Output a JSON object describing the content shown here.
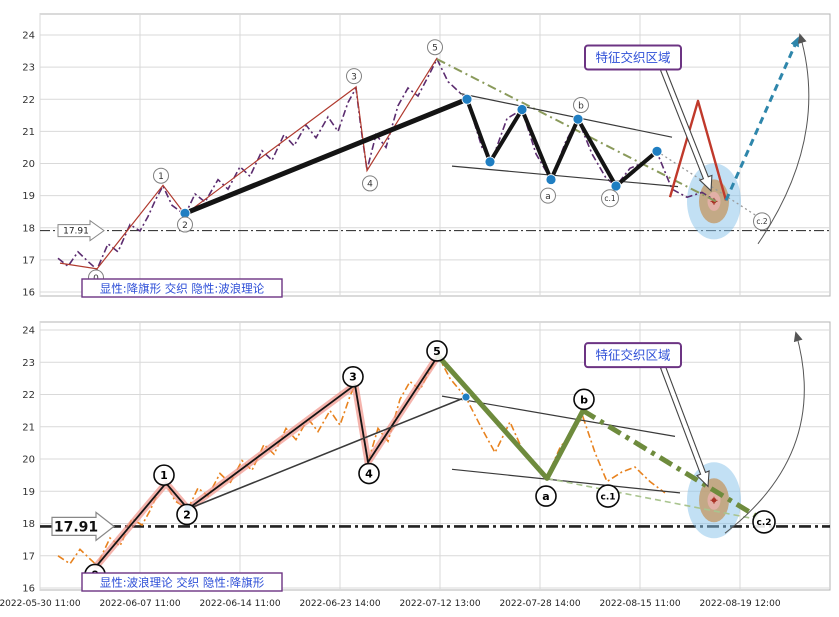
{
  "chart_type": "dual-panel elliott-wave / flag pattern analysis",
  "x_axis": {
    "tick_labels": [
      "2022-05-30 11:00",
      "2022-06-07 11:00",
      "2022-06-14 11:00",
      "2022-06-23 14:00",
      "2022-07-12 13:00",
      "2022-07-28 14:00",
      "2022-08-15 11:00",
      "2022-08-19 12:00"
    ]
  },
  "colors": {
    "price_top": "#5B2C6F",
    "price_bottom": "#E8821E",
    "pivot_thin_red": "#B03A2E",
    "structure_black": "#141414",
    "channel_black": "#3a3a3a",
    "olive": "#8A9A5B",
    "salmon": "#F1948A",
    "green": "#6E8B3D",
    "green_light": "#A9C48E",
    "spike_red": "#C0392B",
    "forecast_teal": "#2E86AB",
    "marker_blue": "#1F7EC2",
    "gray_dotted": "#9a9a9a",
    "bullseye_outer": "#85C1E9",
    "bullseye_mid": "#C39B6A",
    "bullseye_inner": "#E6B0AA",
    "bullseye_dot": "#A93226",
    "box_border_purple": "#6C3483",
    "box_text_blue": "#2E4FD7",
    "grid": "#d9d9d9"
  },
  "chart_data": [
    {
      "name": "top",
      "type": "line",
      "ylim": [
        16,
        24.6
      ],
      "yticks": [
        16,
        17,
        18,
        19,
        20,
        21,
        22,
        23,
        24
      ],
      "hline": {
        "value": 17.91,
        "label": "17.91",
        "weight": "thin"
      },
      "caption": "显性:降旗形 交织 隐性:波浪理论",
      "region_box": {
        "text": "特征交织区域",
        "x": 5.93,
        "v": 23.3,
        "arrow_to": [
          6.71,
          19.15
        ]
      },
      "bullseye": {
        "x": 6.74,
        "v": 18.82
      },
      "curve_arrow": {
        "from": [
          7.18,
          17.5
        ],
        "ctrl": [
          7.9,
          20.8
        ],
        "to": [
          7.6,
          24.0
        ]
      },
      "label_style": "light",
      "labels": [
        {
          "t": "0",
          "x": 0.56,
          "v": 16.45
        },
        {
          "t": "1",
          "x": 1.21,
          "v": 19.62
        },
        {
          "t": "2",
          "x": 1.45,
          "v": 18.1
        },
        {
          "t": "3",
          "x": 3.14,
          "v": 22.72
        },
        {
          "t": "4",
          "x": 3.3,
          "v": 19.38
        },
        {
          "t": "5",
          "x": 3.95,
          "v": 23.62
        },
        {
          "t": "a",
          "x": 5.08,
          "v": 19.0
        },
        {
          "t": "b",
          "x": 5.41,
          "v": 21.82
        },
        {
          "t": "c.1",
          "x": 5.7,
          "v": 18.92
        },
        {
          "t": "c.2",
          "x": 7.22,
          "v": 18.2
        }
      ],
      "markers": {
        "r": 5,
        "points": [
          [
            1.45,
            18.45
          ],
          [
            4.27,
            22.0
          ],
          [
            4.5,
            20.05
          ],
          [
            4.82,
            21.68
          ],
          [
            5.11,
            19.5
          ],
          [
            5.38,
            21.38
          ],
          [
            5.76,
            19.3
          ],
          [
            6.17,
            20.38
          ]
        ]
      },
      "series": [
        {
          "name": "price-purple",
          "style": "price-top",
          "points": [
            [
              0.18,
              17.05
            ],
            [
              0.28,
              16.8
            ],
            [
              0.38,
              17.25
            ],
            [
              0.48,
              16.95
            ],
            [
              0.57,
              16.7
            ],
            [
              0.68,
              17.5
            ],
            [
              0.78,
              17.25
            ],
            [
              0.9,
              18.1
            ],
            [
              1.0,
              17.9
            ],
            [
              1.08,
              18.35
            ],
            [
              1.16,
              18.9
            ],
            [
              1.23,
              19.3
            ],
            [
              1.32,
              18.7
            ],
            [
              1.45,
              18.4
            ],
            [
              1.55,
              19.05
            ],
            [
              1.65,
              18.8
            ],
            [
              1.78,
              19.5
            ],
            [
              1.88,
              19.2
            ],
            [
              2.0,
              19.9
            ],
            [
              2.1,
              19.6
            ],
            [
              2.22,
              20.4
            ],
            [
              2.32,
              20.1
            ],
            [
              2.44,
              20.9
            ],
            [
              2.54,
              20.55
            ],
            [
              2.66,
              21.2
            ],
            [
              2.76,
              20.8
            ],
            [
              2.88,
              21.45
            ],
            [
              2.98,
              21.0
            ],
            [
              3.08,
              21.9
            ],
            [
              3.16,
              22.35
            ],
            [
              3.21,
              21.1
            ],
            [
              3.27,
              19.8
            ],
            [
              3.36,
              20.9
            ],
            [
              3.46,
              20.5
            ],
            [
              3.58,
              21.8
            ],
            [
              3.68,
              22.35
            ],
            [
              3.78,
              22.1
            ],
            [
              3.88,
              22.7
            ],
            [
              3.97,
              23.25
            ],
            [
              4.08,
              22.55
            ],
            [
              4.27,
              22.0
            ],
            [
              4.42,
              20.5
            ],
            [
              4.52,
              20.1
            ],
            [
              4.67,
              21.4
            ],
            [
              4.82,
              21.68
            ],
            [
              4.96,
              20.3
            ],
            [
              5.11,
              19.5
            ],
            [
              5.26,
              20.7
            ],
            [
              5.38,
              21.38
            ],
            [
              5.52,
              20.3
            ],
            [
              5.66,
              19.55
            ],
            [
              5.76,
              19.3
            ],
            [
              5.9,
              19.85
            ],
            [
              6.05,
              20.05
            ],
            [
              6.17,
              20.35
            ],
            [
              6.32,
              19.2
            ],
            [
              6.47,
              18.95
            ],
            [
              6.62,
              19.1
            ],
            [
              6.75,
              18.85
            ]
          ]
        },
        {
          "name": "pivot-red",
          "style": "pivot-red",
          "points": [
            [
              0.2,
              16.9
            ],
            [
              0.57,
              16.72
            ],
            [
              1.23,
              19.32
            ],
            [
              1.45,
              18.42
            ],
            [
              3.16,
              22.38
            ],
            [
              3.27,
              19.78
            ],
            [
              3.97,
              23.28
            ]
          ]
        },
        {
          "name": "olive-diagonal",
          "style": "olive-dashdot",
          "points": [
            [
              3.97,
              23.25
            ],
            [
              6.76,
              18.82
            ]
          ]
        },
        {
          "name": "gray-dotted-projection",
          "style": "gray-dotted",
          "points": [
            [
              6.17,
              20.38
            ],
            [
              7.24,
              18.22
            ]
          ]
        },
        {
          "name": "channel-upper",
          "style": "channel",
          "points": [
            [
              4.2,
              22.18
            ],
            [
              6.32,
              20.82
            ]
          ]
        },
        {
          "name": "channel-lower",
          "style": "channel",
          "points": [
            [
              4.12,
              19.92
            ],
            [
              6.38,
              19.28
            ]
          ]
        },
        {
          "name": "flag-pole",
          "style": "pole",
          "points": [
            [
              1.45,
              18.45
            ],
            [
              4.27,
              22.0
            ]
          ]
        },
        {
          "name": "flag-zigzag",
          "style": "zigzag",
          "points": [
            [
              4.27,
              22.0
            ],
            [
              4.5,
              20.05
            ],
            [
              4.82,
              21.68
            ],
            [
              5.11,
              19.5
            ],
            [
              5.38,
              21.38
            ],
            [
              5.76,
              19.3
            ],
            [
              6.17,
              20.38
            ]
          ]
        },
        {
          "name": "red-spike",
          "style": "spike-red",
          "points": [
            [
              6.3,
              18.95
            ],
            [
              6.58,
              21.95
            ],
            [
              6.86,
              18.85
            ]
          ]
        },
        {
          "name": "forecast-arrow",
          "style": "teal-arrow",
          "arrow": true,
          "points": [
            [
              6.86,
              18.85
            ],
            [
              7.58,
              23.9
            ]
          ]
        }
      ]
    },
    {
      "name": "bottom",
      "type": "line",
      "ylim": [
        16,
        24.6
      ],
      "yticks": [
        16,
        17,
        18,
        19,
        20,
        21,
        22,
        23,
        24
      ],
      "hline": {
        "value": 17.91,
        "label": "17.91",
        "weight": "bold"
      },
      "caption": "显性:波浪理论 交织 隐性:降旗形",
      "region_box": {
        "text": "特征交织区域",
        "x": 5.93,
        "v": 23.22,
        "arrow_to": [
          6.68,
          19.15
        ]
      },
      "bullseye": {
        "x": 6.74,
        "v": 18.72
      },
      "curve_arrow": {
        "from": [
          6.85,
          17.7
        ],
        "ctrl": [
          7.9,
          20.2
        ],
        "to": [
          7.56,
          23.9
        ]
      },
      "label_style": "bold",
      "labels": [
        {
          "t": "0",
          "x": 0.55,
          "v": 16.42
        },
        {
          "t": "1",
          "x": 1.24,
          "v": 19.5
        },
        {
          "t": "2",
          "x": 1.47,
          "v": 18.28
        },
        {
          "t": "3",
          "x": 3.13,
          "v": 22.55
        },
        {
          "t": "4",
          "x": 3.29,
          "v": 19.55
        },
        {
          "t": "5",
          "x": 3.97,
          "v": 23.35
        },
        {
          "t": "a",
          "x": 5.06,
          "v": 18.85
        },
        {
          "t": "b",
          "x": 5.44,
          "v": 21.85
        },
        {
          "t": "c.1",
          "x": 5.68,
          "v": 18.85
        },
        {
          "t": "c.2",
          "x": 7.24,
          "v": 18.05
        }
      ],
      "markers": {
        "r": 4,
        "points": [
          [
            1.48,
            18.48
          ],
          [
            4.26,
            21.92
          ]
        ]
      },
      "series": [
        {
          "name": "price-orange",
          "style": "price-bottom",
          "points": [
            [
              0.18,
              17.0
            ],
            [
              0.3,
              16.75
            ],
            [
              0.4,
              17.2
            ],
            [
              0.5,
              16.9
            ],
            [
              0.57,
              16.7
            ],
            [
              0.7,
              17.55
            ],
            [
              0.8,
              17.3
            ],
            [
              0.92,
              18.15
            ],
            [
              1.02,
              17.95
            ],
            [
              1.1,
              18.4
            ],
            [
              1.18,
              18.95
            ],
            [
              1.26,
              19.25
            ],
            [
              1.35,
              18.7
            ],
            [
              1.48,
              18.45
            ],
            [
              1.58,
              19.1
            ],
            [
              1.68,
              18.85
            ],
            [
              1.8,
              19.55
            ],
            [
              1.9,
              19.25
            ],
            [
              2.02,
              19.95
            ],
            [
              2.12,
              19.65
            ],
            [
              2.24,
              20.45
            ],
            [
              2.34,
              20.15
            ],
            [
              2.46,
              20.95
            ],
            [
              2.56,
              20.6
            ],
            [
              2.68,
              21.25
            ],
            [
              2.78,
              20.85
            ],
            [
              2.9,
              21.5
            ],
            [
              3.0,
              21.05
            ],
            [
              3.1,
              21.95
            ],
            [
              3.15,
              22.3
            ],
            [
              3.21,
              21.15
            ],
            [
              3.28,
              19.9
            ],
            [
              3.38,
              20.95
            ],
            [
              3.48,
              20.55
            ],
            [
              3.6,
              21.85
            ],
            [
              3.7,
              22.4
            ],
            [
              3.8,
              22.15
            ],
            [
              3.9,
              22.75
            ],
            [
              3.98,
              23.2
            ],
            [
              4.1,
              22.5
            ],
            [
              4.26,
              21.9
            ],
            [
              4.4,
              21.05
            ],
            [
              4.55,
              20.2
            ],
            [
              4.7,
              21.15
            ],
            [
              4.85,
              20.1
            ],
            [
              5.07,
              19.45
            ],
            [
              5.2,
              20.35
            ],
            [
              5.32,
              20.85
            ],
            [
              5.43,
              21.3
            ],
            [
              5.55,
              20.2
            ],
            [
              5.67,
              19.3
            ],
            [
              5.82,
              19.6
            ],
            [
              5.95,
              19.75
            ],
            [
              6.1,
              19.3
            ],
            [
              6.25,
              18.95
            ]
          ]
        },
        {
          "name": "impulse-salmon",
          "style": "salmon",
          "points": [
            [
              0.57,
              16.7
            ],
            [
              1.26,
              19.25
            ],
            [
              1.48,
              18.45
            ],
            [
              3.15,
              22.3
            ],
            [
              3.28,
              19.9
            ],
            [
              3.98,
              23.2
            ]
          ]
        },
        {
          "name": "impulse-black",
          "style": "wave-black",
          "points": [
            [
              0.57,
              16.7
            ],
            [
              1.26,
              19.25
            ],
            [
              1.48,
              18.45
            ],
            [
              3.15,
              22.3
            ],
            [
              3.28,
              19.9
            ],
            [
              3.98,
              23.2
            ]
          ]
        },
        {
          "name": "trendline",
          "style": "trend-black",
          "points": [
            [
              1.48,
              18.45
            ],
            [
              4.26,
              21.92
            ]
          ]
        },
        {
          "name": "channel-upper",
          "style": "channel",
          "points": [
            [
              4.02,
              21.95
            ],
            [
              6.35,
              20.7
            ]
          ]
        },
        {
          "name": "channel-lower",
          "style": "channel",
          "points": [
            [
              4.12,
              19.68
            ],
            [
              6.4,
              18.95
            ]
          ]
        },
        {
          "name": "correction-dashed",
          "style": "green-dashed",
          "points": [
            [
              5.07,
              19.4
            ],
            [
              7.22,
              18.1
            ]
          ]
        },
        {
          "name": "correction-solid",
          "style": "green-thick",
          "points": [
            [
              3.98,
              23.2
            ],
            [
              5.07,
              19.4
            ],
            [
              5.43,
              21.5
            ]
          ]
        },
        {
          "name": "correction-dashdot",
          "style": "green-dashdot",
          "points": [
            [
              5.43,
              21.5
            ],
            [
              7.22,
              18.12
            ]
          ]
        }
      ]
    }
  ]
}
